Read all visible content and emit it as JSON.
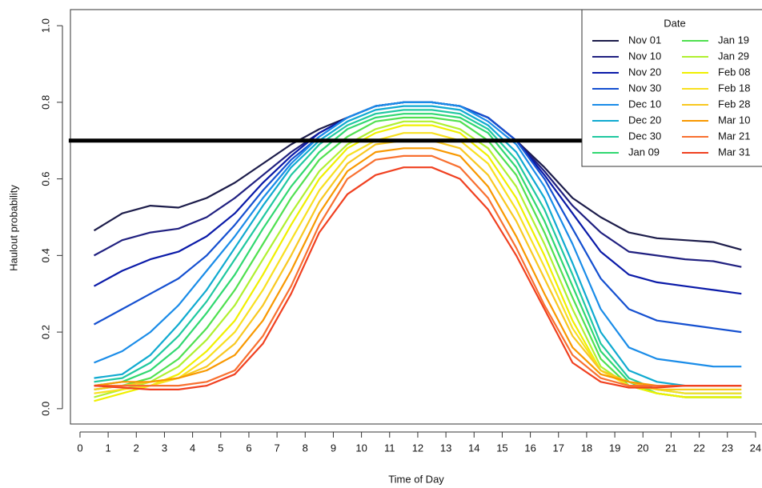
{
  "chart_data": {
    "type": "line",
    "x_label": "Time of Day",
    "y_label": "Haulout probability",
    "legend_title": "Date",
    "x": [
      0.5,
      1.5,
      2.5,
      3.5,
      4.5,
      5.5,
      6.5,
      7.5,
      8.5,
      9.5,
      10.5,
      11.5,
      12.5,
      13.5,
      14.5,
      15.5,
      16.5,
      17.5,
      18.5,
      19.5,
      20.5,
      21.5,
      22.5,
      23.5
    ],
    "xlim": [
      -0.34,
      24.23
    ],
    "xticks": [
      0,
      1,
      2,
      3,
      4,
      5,
      6,
      7,
      8,
      9,
      10,
      11,
      12,
      13,
      14,
      15,
      16,
      17,
      18,
      19,
      20,
      21,
      22,
      23,
      24
    ],
    "ylim": [
      -0.04,
      1.042
    ],
    "yticks": [
      {
        "value": 0,
        "label": "0.0"
      },
      0.2,
      0.4,
      0.6,
      0.8,
      {
        "value": 1,
        "label": "1.0"
      }
    ],
    "reference_line": {
      "value": 0.7,
      "x": [
        -0.4,
        17.9
      ],
      "color": "#000000"
    },
    "series": [
      {
        "name": "Nov 01",
        "color": "#1c1c4a",
        "values": [
          0.465,
          0.51,
          0.53,
          0.525,
          0.55,
          0.59,
          0.64,
          0.69,
          0.73,
          0.76,
          0.79,
          0.8,
          0.8,
          0.79,
          0.76,
          0.7,
          0.63,
          0.55,
          0.5,
          0.46,
          0.445,
          0.44,
          0.435,
          0.415
        ]
      },
      {
        "name": "Nov 10",
        "color": "#202080",
        "values": [
          0.4,
          0.44,
          0.46,
          0.47,
          0.5,
          0.55,
          0.61,
          0.67,
          0.72,
          0.76,
          0.79,
          0.8,
          0.8,
          0.79,
          0.76,
          0.7,
          0.62,
          0.53,
          0.46,
          0.41,
          0.4,
          0.39,
          0.385,
          0.37
        ]
      },
      {
        "name": "Nov 20",
        "color": "#0a1aa8",
        "values": [
          0.32,
          0.36,
          0.39,
          0.41,
          0.45,
          0.51,
          0.59,
          0.66,
          0.72,
          0.76,
          0.79,
          0.8,
          0.8,
          0.79,
          0.76,
          0.7,
          0.61,
          0.51,
          0.41,
          0.35,
          0.33,
          0.32,
          0.31,
          0.3
        ]
      },
      {
        "name": "Nov 30",
        "color": "#1550d0",
        "values": [
          0.22,
          0.26,
          0.3,
          0.34,
          0.4,
          0.48,
          0.57,
          0.65,
          0.71,
          0.76,
          0.79,
          0.8,
          0.8,
          0.79,
          0.76,
          0.7,
          0.6,
          0.47,
          0.34,
          0.26,
          0.23,
          0.22,
          0.21,
          0.2
        ]
      },
      {
        "name": "Dec 10",
        "color": "#1a8ce8",
        "values": [
          0.12,
          0.15,
          0.2,
          0.27,
          0.36,
          0.45,
          0.55,
          0.64,
          0.71,
          0.76,
          0.79,
          0.8,
          0.8,
          0.79,
          0.75,
          0.69,
          0.58,
          0.43,
          0.26,
          0.16,
          0.13,
          0.12,
          0.11,
          0.11
        ]
      },
      {
        "name": "Dec 20",
        "color": "#10aad0",
        "values": [
          0.08,
          0.09,
          0.14,
          0.22,
          0.31,
          0.42,
          0.53,
          0.63,
          0.7,
          0.75,
          0.78,
          0.79,
          0.79,
          0.78,
          0.74,
          0.67,
          0.55,
          0.38,
          0.2,
          0.1,
          0.07,
          0.06,
          0.06,
          0.06
        ]
      },
      {
        "name": "Dec 30",
        "color": "#20c8a0",
        "values": [
          0.07,
          0.08,
          0.12,
          0.19,
          0.28,
          0.39,
          0.5,
          0.61,
          0.69,
          0.74,
          0.77,
          0.78,
          0.78,
          0.77,
          0.73,
          0.65,
          0.52,
          0.35,
          0.17,
          0.08,
          0.05,
          0.04,
          0.04,
          0.04
        ]
      },
      {
        "name": "Jan 09",
        "color": "#30d870",
        "values": [
          0.06,
          0.07,
          0.1,
          0.16,
          0.25,
          0.35,
          0.47,
          0.58,
          0.67,
          0.73,
          0.76,
          0.77,
          0.77,
          0.76,
          0.72,
          0.63,
          0.49,
          0.32,
          0.15,
          0.07,
          0.04,
          0.03,
          0.03,
          0.03
        ]
      },
      {
        "name": "Jan 19",
        "color": "#50e050",
        "values": [
          0.05,
          0.06,
          0.08,
          0.13,
          0.21,
          0.31,
          0.43,
          0.55,
          0.65,
          0.71,
          0.75,
          0.76,
          0.76,
          0.75,
          0.7,
          0.61,
          0.46,
          0.29,
          0.13,
          0.06,
          0.04,
          0.03,
          0.03,
          0.03
        ]
      },
      {
        "name": "Jan 29",
        "color": "#b0f030",
        "values": [
          0.03,
          0.05,
          0.07,
          0.11,
          0.18,
          0.27,
          0.39,
          0.51,
          0.62,
          0.69,
          0.73,
          0.75,
          0.75,
          0.73,
          0.68,
          0.58,
          0.43,
          0.26,
          0.11,
          0.06,
          0.04,
          0.03,
          0.03,
          0.03
        ]
      },
      {
        "name": "Feb 08",
        "color": "#f0f000",
        "values": [
          0.02,
          0.04,
          0.06,
          0.09,
          0.15,
          0.23,
          0.35,
          0.48,
          0.6,
          0.68,
          0.72,
          0.74,
          0.74,
          0.72,
          0.66,
          0.55,
          0.4,
          0.23,
          0.1,
          0.06,
          0.04,
          0.03,
          0.03,
          0.03
        ]
      },
      {
        "name": "Feb 18",
        "color": "#f8e020",
        "values": [
          0.04,
          0.05,
          0.06,
          0.08,
          0.13,
          0.2,
          0.31,
          0.44,
          0.57,
          0.66,
          0.7,
          0.72,
          0.72,
          0.7,
          0.64,
          0.52,
          0.37,
          0.21,
          0.1,
          0.06,
          0.05,
          0.04,
          0.04,
          0.04
        ]
      },
      {
        "name": "Feb 28",
        "color": "#f8c820",
        "values": [
          0.05,
          0.06,
          0.07,
          0.08,
          0.11,
          0.17,
          0.27,
          0.4,
          0.54,
          0.64,
          0.69,
          0.7,
          0.7,
          0.68,
          0.61,
          0.49,
          0.34,
          0.19,
          0.1,
          0.07,
          0.05,
          0.05,
          0.05,
          0.05
        ]
      },
      {
        "name": "Mar 10",
        "color": "#f89800",
        "values": [
          0.06,
          0.07,
          0.07,
          0.08,
          0.1,
          0.14,
          0.23,
          0.36,
          0.51,
          0.62,
          0.67,
          0.68,
          0.68,
          0.66,
          0.58,
          0.45,
          0.3,
          0.16,
          0.09,
          0.07,
          0.06,
          0.06,
          0.06,
          0.06
        ]
      },
      {
        "name": "Mar 21",
        "color": "#f87030",
        "values": [
          0.06,
          0.06,
          0.06,
          0.06,
          0.07,
          0.1,
          0.19,
          0.32,
          0.48,
          0.6,
          0.65,
          0.66,
          0.66,
          0.63,
          0.55,
          0.42,
          0.27,
          0.14,
          0.08,
          0.06,
          0.06,
          0.06,
          0.06,
          0.06
        ]
      },
      {
        "name": "Mar 31",
        "color": "#f04020",
        "values": [
          0.06,
          0.055,
          0.05,
          0.05,
          0.06,
          0.09,
          0.17,
          0.3,
          0.46,
          0.56,
          0.61,
          0.63,
          0.63,
          0.6,
          0.52,
          0.4,
          0.26,
          0.12,
          0.07,
          0.055,
          0.055,
          0.06,
          0.06,
          0.06
        ]
      }
    ]
  }
}
